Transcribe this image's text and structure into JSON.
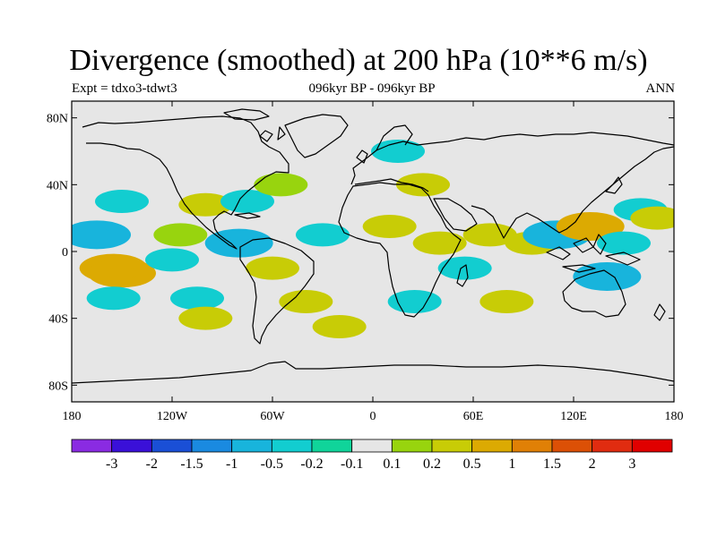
{
  "header": {
    "title": "Divergence (smoothed) at 200 hPa (10**6 m/s)",
    "left_label": "Expt = tdxo3-tdwt3",
    "center_label": "096kyr BP - 096kyr BP",
    "right_label": "ANN"
  },
  "map": {
    "projection": "cylindrical-equidistant",
    "background_color": "#e6e6e6",
    "coastline_color": "#000000",
    "x_ticks": [
      "180",
      "120W",
      "60W",
      "0",
      "60E",
      "120E",
      "180"
    ],
    "y_ticks": [
      "80N",
      "40N",
      "0",
      "40S",
      "80S"
    ]
  },
  "colorbar": {
    "labels": [
      "-3",
      "-2",
      "-1.5",
      "-1",
      "-0.5",
      "-0.2",
      "-0.1",
      "0.1",
      "0.2",
      "0.5",
      "1",
      "1.5",
      "2",
      "3"
    ],
    "colors": [
      "#8a2be2",
      "#3a10d8",
      "#1a4fd6",
      "#1a8ae0",
      "#18b4dc",
      "#12cdd0",
      "#10d49a",
      "#e6e6e6",
      "#98d40e",
      "#c8cc06",
      "#dcaa02",
      "#e08006",
      "#dc5006",
      "#e02c10",
      "#e00000"
    ]
  },
  "chart_data": {
    "type": "heatmap",
    "title": "Divergence (smoothed) at 200 hPa (10**6 m/s)",
    "xlim": [
      -180,
      180
    ],
    "ylim": [
      -90,
      90
    ],
    "contour_levels": [
      -3,
      -2,
      -1.5,
      -1,
      -0.5,
      -0.2,
      -0.1,
      0.1,
      0.2,
      0.5,
      1,
      1.5,
      2,
      3
    ],
    "features": [
      {
        "lon": -155,
        "lat": -10,
        "value": 1.0
      },
      {
        "lon": -150,
        "lat": -13,
        "value": 0.6
      },
      {
        "lon": -165,
        "lat": 10,
        "value": -0.5
      },
      {
        "lon": -150,
        "lat": 30,
        "value": -0.2
      },
      {
        "lon": -155,
        "lat": -28,
        "value": -0.3
      },
      {
        "lon": -120,
        "lat": -5,
        "value": -0.3
      },
      {
        "lon": -115,
        "lat": 10,
        "value": 0.2
      },
      {
        "lon": -105,
        "lat": -28,
        "value": -0.2
      },
      {
        "lon": -100,
        "lat": -40,
        "value": 0.3
      },
      {
        "lon": -100,
        "lat": 28,
        "value": 0.3
      },
      {
        "lon": -80,
        "lat": 5,
        "value": -0.5
      },
      {
        "lon": -75,
        "lat": 30,
        "value": -0.3
      },
      {
        "lon": -60,
        "lat": -10,
        "value": 0.3
      },
      {
        "lon": -55,
        "lat": 40,
        "value": 0.2
      },
      {
        "lon": -40,
        "lat": -30,
        "value": 0.4
      },
      {
        "lon": -30,
        "lat": 10,
        "value": -0.3
      },
      {
        "lon": -20,
        "lat": -45,
        "value": 0.3
      },
      {
        "lon": 10,
        "lat": 15,
        "value": 0.4
      },
      {
        "lon": 15,
        "lat": 60,
        "value": -0.2
      },
      {
        "lon": 25,
        "lat": -30,
        "value": -0.3
      },
      {
        "lon": 30,
        "lat": 40,
        "value": 0.3
      },
      {
        "lon": 40,
        "lat": 5,
        "value": 0.3
      },
      {
        "lon": 55,
        "lat": -10,
        "value": -0.3
      },
      {
        "lon": 70,
        "lat": 10,
        "value": 0.4
      },
      {
        "lon": 80,
        "lat": -30,
        "value": 0.3
      },
      {
        "lon": 95,
        "lat": 5,
        "value": 0.4
      },
      {
        "lon": 110,
        "lat": 10,
        "value": -0.5
      },
      {
        "lon": 130,
        "lat": 15,
        "value": 0.6
      },
      {
        "lon": 140,
        "lat": -15,
        "value": -0.5
      },
      {
        "lon": 150,
        "lat": 5,
        "value": -0.3
      },
      {
        "lon": 160,
        "lat": 25,
        "value": -0.2
      },
      {
        "lon": 170,
        "lat": 20,
        "value": 0.3
      }
    ]
  }
}
